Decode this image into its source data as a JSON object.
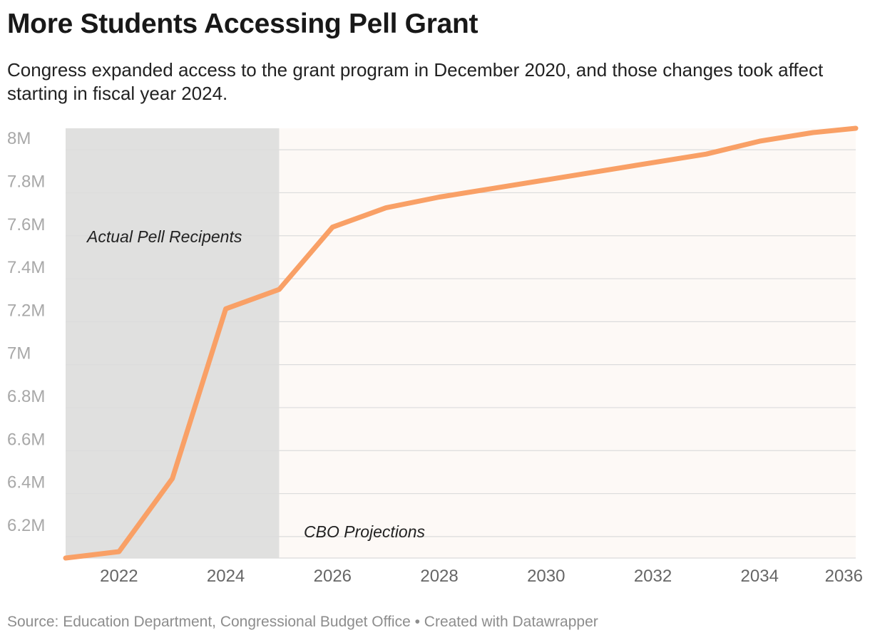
{
  "header": {
    "title": "More Students Accessing Pell Grant",
    "subtitle": "Congress expanded access to the grant program in December 2020, and those changes took affect starting in fiscal year 2024."
  },
  "footer": {
    "source": "Source: Education Department, Congressional Budget Office • Created with Datawrapper"
  },
  "chart_data": {
    "type": "line",
    "title": "More Students Accessing Pell Grant",
    "xlabel": "",
    "ylabel": "",
    "xlim": [
      2021,
      2035.8
    ],
    "ylim": [
      6.1,
      8.1
    ],
    "x_ticks": [
      2022,
      2024,
      2026,
      2028,
      2030,
      2032,
      2034,
      2036
    ],
    "x_tick_labels": [
      "2022",
      "2024",
      "2026",
      "2028",
      "2030",
      "2032",
      "2034",
      "2036"
    ],
    "y_ticks": [
      6.2,
      6.4,
      6.6,
      6.8,
      7.0,
      7.2,
      7.4,
      7.6,
      7.8,
      8.0
    ],
    "y_tick_labels": [
      "6.2M",
      "6.4M",
      "6.6M",
      "6.8M",
      "7M",
      "7.2M",
      "7.4M",
      "7.6M",
      "7.8M",
      "8M"
    ],
    "grid": true,
    "line_color": "#f9a066",
    "series": [
      {
        "x": [
          2021,
          2022,
          2023,
          2024,
          2025,
          2026,
          2027,
          2028,
          2029,
          2030,
          2031,
          2032,
          2033,
          2034,
          2035,
          2035.8
        ],
        "values": [
          6.1,
          6.13,
          6.47,
          7.26,
          7.35,
          7.64,
          7.73,
          7.78,
          7.82,
          7.86,
          7.9,
          7.94,
          7.98,
          8.04,
          8.08,
          8.1
        ]
      }
    ],
    "regions": [
      {
        "from": 2021,
        "to": 2025,
        "color": "#e0e0df",
        "label": "Actual Pell Recipents"
      },
      {
        "from": 2025,
        "to": 2035.8,
        "color": "#fdf9f6",
        "label": "CBO Projections"
      }
    ]
  }
}
